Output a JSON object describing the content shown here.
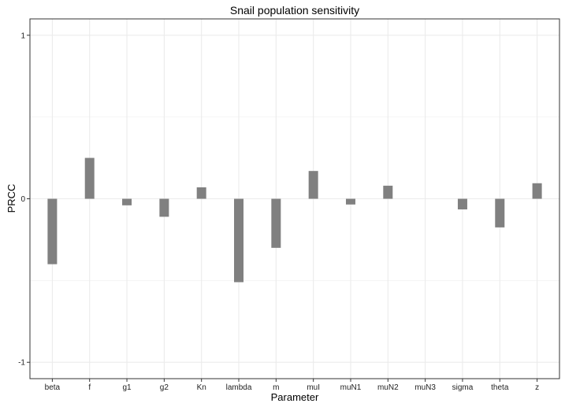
{
  "chart_data": {
    "type": "bar",
    "title": "Snail population sensitivity",
    "xlabel": "Parameter",
    "ylabel": "PRCC",
    "categories": [
      "beta",
      "f",
      "g1",
      "g2",
      "Kn",
      "lambda",
      "m",
      "muI",
      "muN1",
      "muN2",
      "muN3",
      "sigma",
      "theta",
      "z"
    ],
    "values": [
      -0.4,
      0.25,
      -0.04,
      -0.11,
      0.07,
      -0.51,
      -0.3,
      0.17,
      -0.035,
      0.08,
      0.0,
      -0.065,
      -0.175,
      0.095
    ],
    "ylim": [
      -1.1,
      1.1
    ],
    "yticks": [
      -1,
      0,
      1
    ],
    "grid": true,
    "legend": "none",
    "bar_color": "#808080",
    "grid_color": "#ebebeb",
    "panel_border_color": "#333333"
  }
}
